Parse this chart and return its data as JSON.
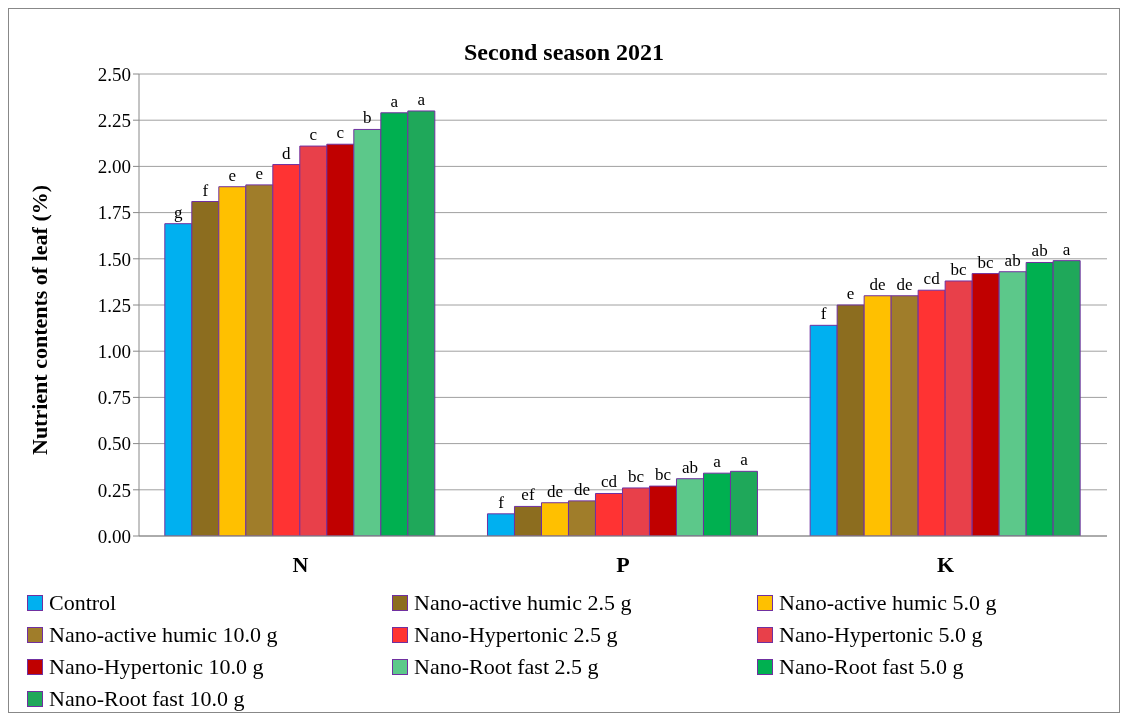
{
  "chart_data": {
    "type": "bar",
    "title": "Second season 2021",
    "ylabel": "Nutrient contents of leaf (%)",
    "categories": [
      "N",
      "P",
      "K"
    ],
    "ylim": [
      0,
      2.5
    ],
    "yticks": [
      {
        "value": 0,
        "label": "0.00"
      },
      {
        "value": 0.25,
        "label": "0.25"
      },
      {
        "value": 0.5,
        "label": "0.50"
      },
      {
        "value": 0.75,
        "label": "0.75"
      },
      {
        "value": 1,
        "label": "1.00"
      },
      {
        "value": 1.25,
        "label": "1.25"
      },
      {
        "value": 1.5,
        "label": "1.50"
      },
      {
        "value": 1.75,
        "label": "1.75"
      },
      {
        "value": 2,
        "label": "2.00"
      },
      {
        "value": 2.25,
        "label": "2.25"
      },
      {
        "value": 2.5,
        "label": "2.50"
      }
    ],
    "grid": "y",
    "legend": "bottom",
    "series": [
      {
        "name": "Control",
        "color": "#00b0f0",
        "values": [
          1.69,
          0.12,
          1.14
        ],
        "value_labels": [
          "g",
          "f",
          "f"
        ]
      },
      {
        "name": "Nano-active humic 2.5 g",
        "color": "#8c6d1f",
        "values": [
          1.81,
          0.16,
          1.25
        ],
        "value_labels": [
          "f",
          "ef",
          "e"
        ]
      },
      {
        "name": "Nano-active humic 5.0 g",
        "color": "#ffc000",
        "values": [
          1.89,
          0.18,
          1.3
        ],
        "value_labels": [
          "e",
          "de",
          "de"
        ]
      },
      {
        "name": "Nano-active humic 10.0 g",
        "color": "#a07d2a",
        "values": [
          1.9,
          0.19,
          1.3
        ],
        "value_labels": [
          "e",
          "de",
          "de"
        ]
      },
      {
        "name": "Nano-Hypertonic 2.5 g",
        "color": "#ff3333",
        "values": [
          2.01,
          0.23,
          1.33
        ],
        "value_labels": [
          "d",
          "cd",
          "cd"
        ]
      },
      {
        "name": "Nano-Hypertonic 5.0 g",
        "color": "#e8404a",
        "values": [
          2.11,
          0.26,
          1.38
        ],
        "value_labels": [
          "c",
          "bc",
          "bc"
        ]
      },
      {
        "name": "Nano-Hypertonic 10.0 g",
        "color": "#c00000",
        "values": [
          2.12,
          0.27,
          1.42
        ],
        "value_labels": [
          "c",
          "bc",
          "bc"
        ]
      },
      {
        "name": "Nano-Root fast 2.5 g",
        "color": "#5cc88a",
        "values": [
          2.2,
          0.31,
          1.43
        ],
        "value_labels": [
          "b",
          "ab",
          "ab"
        ]
      },
      {
        "name": "Nano-Root fast 5.0 g",
        "color": "#00b050",
        "values": [
          2.29,
          0.34,
          1.48
        ],
        "value_labels": [
          "a",
          "a",
          "ab"
        ]
      },
      {
        "name": "Nano-Root fast 10.0 g",
        "color": "#1fa85a",
        "values": [
          2.3,
          0.35,
          1.49
        ],
        "value_labels": [
          "a",
          "a",
          "a"
        ]
      }
    ]
  }
}
